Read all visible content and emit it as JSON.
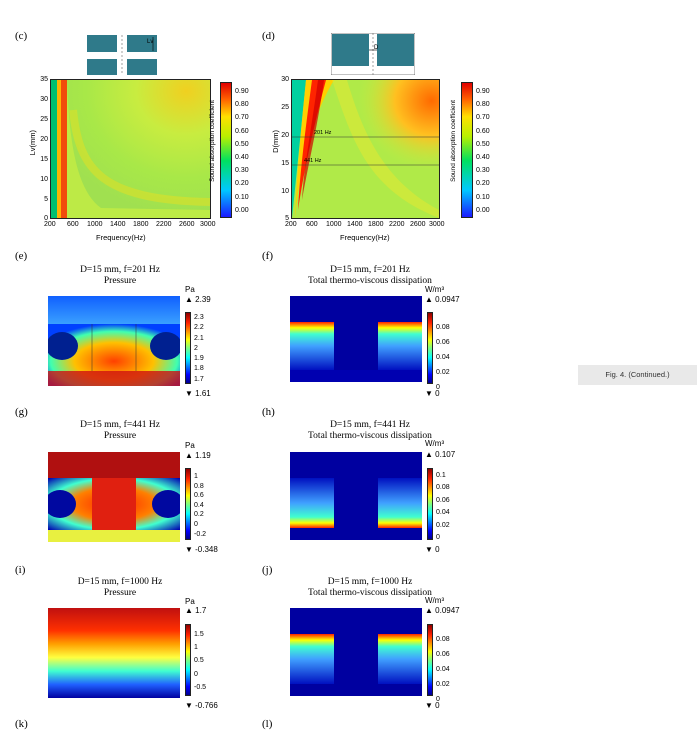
{
  "panel_letters": {
    "c": "(c)",
    "d": "(d)",
    "e": "(e)",
    "f": "(f)",
    "g": "(g)",
    "h": "(h)",
    "i": "(i)",
    "j": "(j)",
    "k": "(k)",
    "l": "(l)"
  },
  "caption": "Fig. 4. (Continued.)",
  "contour_c": {
    "ylabel": "Lv(mm)",
    "xlabel": "Frequency(Hz)",
    "xticks": [
      "200",
      "600",
      "1000",
      "1400",
      "1800",
      "2200",
      "2600",
      "3000"
    ],
    "yticks": [
      "0",
      "5",
      "10",
      "15",
      "20",
      "25",
      "30",
      "35"
    ],
    "cb_label": "Sound absorption coefficient",
    "cb_ticks": [
      "0.90",
      "0.80",
      "0.70",
      "0.60",
      "0.50",
      "0.40",
      "0.30",
      "0.20",
      "0.10",
      "0.00"
    ],
    "inset_label": "Lv"
  },
  "contour_d": {
    "ylabel": "D(mm)",
    "xlabel": "Frequency(Hz)",
    "xticks": [
      "200",
      "600",
      "1000",
      "1400",
      "1800",
      "2200",
      "2600",
      "3000"
    ],
    "yticks": [
      "5",
      "10",
      "15",
      "20",
      "25",
      "30"
    ],
    "line1": "201 Hz",
    "line2": "441 Hz",
    "cb_label": "Sound absorption coefficient",
    "cb_ticks": [
      "0.90",
      "0.80",
      "0.70",
      "0.60",
      "0.50",
      "0.40",
      "0.30",
      "0.20",
      "0.10",
      "0.00"
    ],
    "inset_label": "D"
  },
  "e": {
    "title1": "D=15 mm, f=201 Hz",
    "title2": "Pressure",
    "unit": "Pa",
    "max": "2.39",
    "min": "1.61",
    "ticks": [
      "2.3",
      "2.2",
      "2.1",
      "2",
      "1.9",
      "1.8",
      "1.7"
    ]
  },
  "f": {
    "title1": "D=15 mm, f=201 Hz",
    "title2": "Total thermo-viscous dissipation",
    "unit": "W/m³",
    "max": "0.0947",
    "min": "0",
    "ticks": [
      "0.08",
      "0.06",
      "0.04",
      "0.02",
      "0"
    ]
  },
  "g": {
    "title1": "D=15 mm, f=441 Hz",
    "title2": "Pressure",
    "unit": "Pa",
    "max": "1.19",
    "min": "-0.348",
    "ticks": [
      "1",
      "0.8",
      "0.6",
      "0.4",
      "0.2",
      "0",
      "-0.2"
    ]
  },
  "h": {
    "title1": "D=15 mm, f=441 Hz",
    "title2": "Total thermo-viscous dissipation",
    "unit": "W/m³",
    "max": "0.107",
    "min": "0",
    "ticks": [
      "0.1",
      "0.08",
      "0.06",
      "0.04",
      "0.02",
      "0"
    ]
  },
  "i": {
    "title1": "D=15 mm, f=1000 Hz",
    "title2": "Pressure",
    "unit": "Pa",
    "max": "1.7",
    "min": "-0.766",
    "ticks": [
      "1.5",
      "1",
      "0.5",
      "0",
      "-0.5"
    ]
  },
  "j": {
    "title1": "D=15 mm, f=1000 Hz",
    "title2": "Total thermo-viscous dissipation",
    "unit": "W/m³",
    "max": "0.0947",
    "min": "0",
    "ticks": [
      "0.08",
      "0.06",
      "0.04",
      "0.02",
      "0"
    ]
  }
}
